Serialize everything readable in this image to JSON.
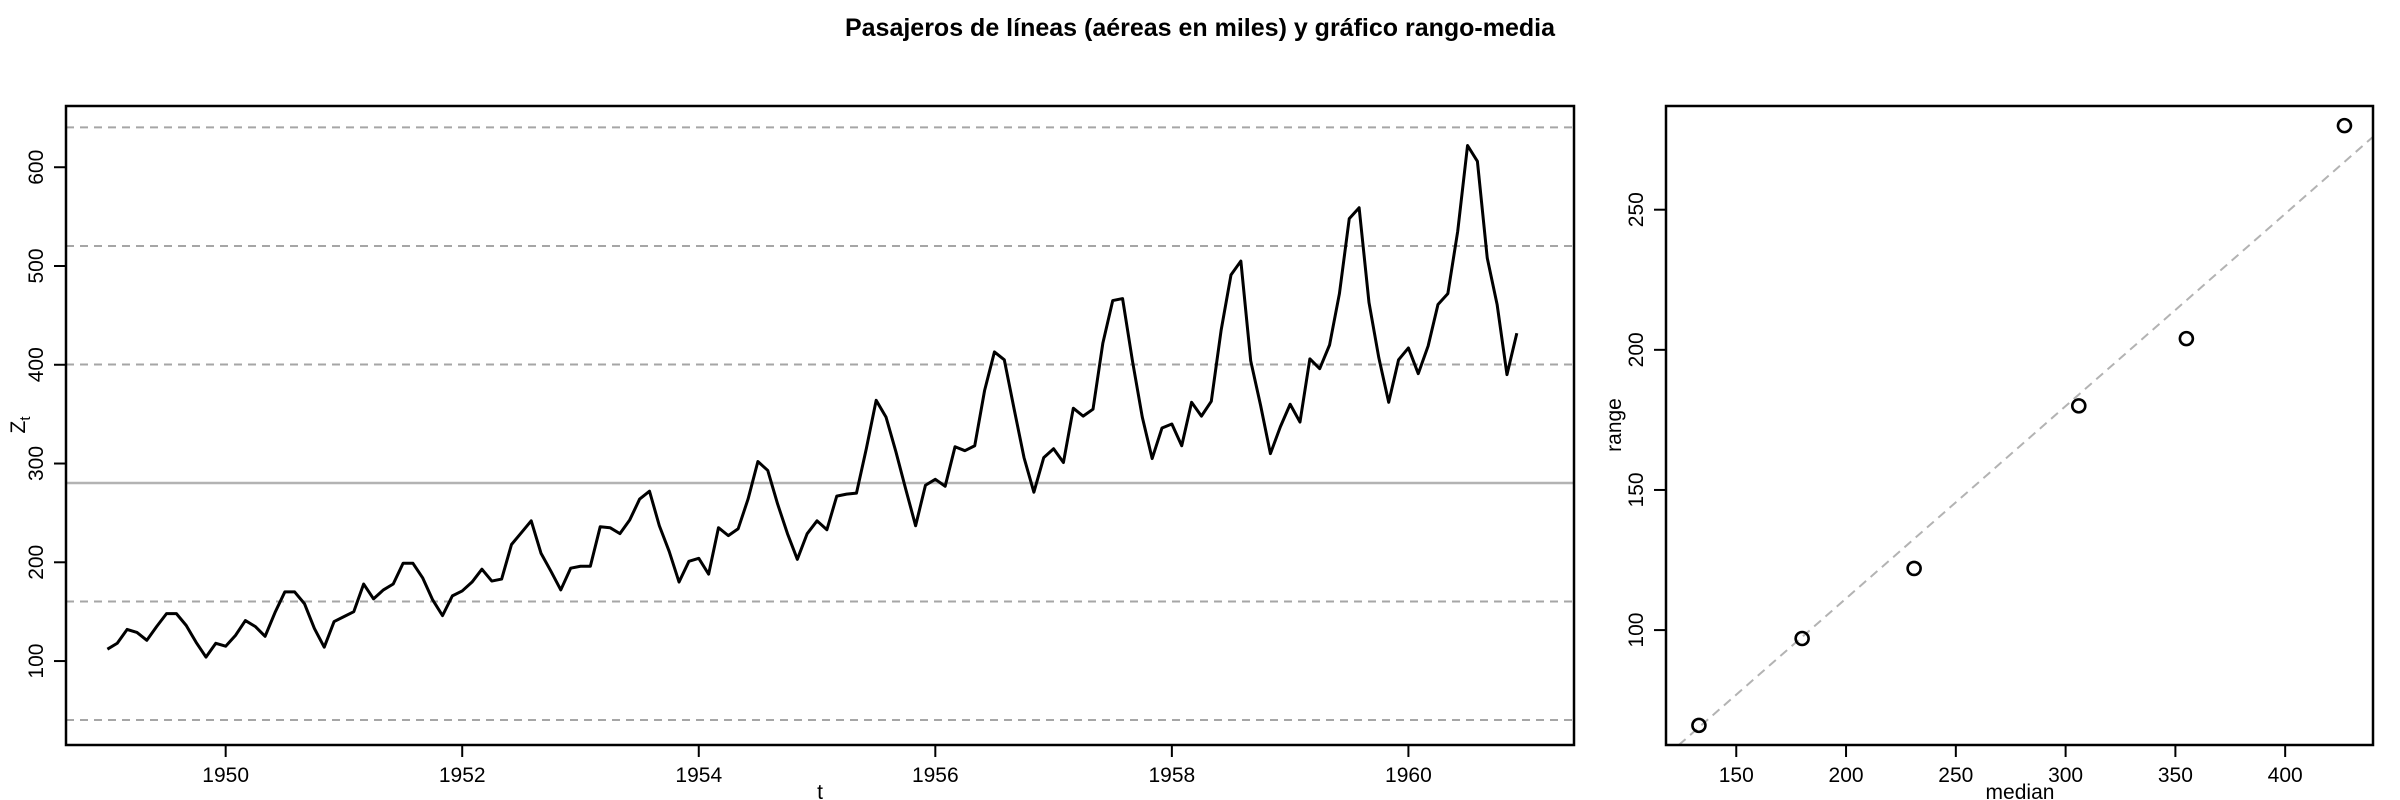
{
  "title": "Pasajeros de líneas (aéreas en miles) y gráfico rango-media",
  "chart_data": [
    {
      "type": "line",
      "xlabel": "t",
      "ylabel": "Z",
      "ylabel_subscript": "t",
      "xlim": [
        1948.65,
        1961.4
      ],
      "ylim": [
        15,
        662
      ],
      "xticks": [
        1950,
        1952,
        1954,
        1956,
        1958,
        1960
      ],
      "yticks": [
        100,
        200,
        300,
        400,
        500,
        600
      ],
      "grid": false,
      "reference_lines": {
        "solid": [
          280.3
        ],
        "dashed": [
          40.3,
          160.3,
          400.3,
          520.3,
          640.3
        ]
      },
      "series": [
        {
          "x_start": 1949.0,
          "x_step": 0.083333,
          "values": [
            112,
            118,
            132,
            129,
            121,
            135,
            148,
            148,
            136,
            119,
            104,
            118,
            115,
            126,
            141,
            135,
            125,
            149,
            170,
            170,
            158,
            133,
            114,
            140,
            145,
            150,
            178,
            163,
            172,
            178,
            199,
            199,
            184,
            162,
            146,
            166,
            171,
            180,
            193,
            181,
            183,
            218,
            230,
            242,
            209,
            191,
            172,
            194,
            196,
            196,
            236,
            235,
            229,
            243,
            264,
            272,
            237,
            211,
            180,
            201,
            204,
            188,
            235,
            227,
            234,
            264,
            302,
            293,
            259,
            229,
            203,
            229,
            242,
            233,
            267,
            269,
            270,
            315,
            364,
            347,
            312,
            274,
            237,
            278,
            284,
            277,
            317,
            313,
            318,
            374,
            413,
            405,
            355,
            306,
            271,
            306,
            315,
            301,
            356,
            348,
            355,
            422,
            465,
            467,
            404,
            347,
            305,
            336,
            340,
            318,
            362,
            348,
            363,
            435,
            491,
            505,
            404,
            359,
            310,
            337,
            360,
            342,
            406,
            396,
            420,
            472,
            548,
            559,
            463,
            407,
            362,
            405,
            417,
            391,
            419,
            461,
            472,
            535,
            622,
            606,
            508,
            461,
            390,
            432
          ]
        }
      ]
    },
    {
      "type": "scatter",
      "xlabel": "median",
      "ylabel": "range",
      "xlim": [
        118,
        440
      ],
      "ylim": [
        59,
        287
      ],
      "xticks": [
        150,
        200,
        250,
        300,
        350,
        400
      ],
      "yticks": [
        100,
        150,
        200,
        250
      ],
      "grid": false,
      "points": [
        {
          "x": 133,
          "y": 66
        },
        {
          "x": 180,
          "y": 97
        },
        {
          "x": 231,
          "y": 122
        },
        {
          "x": 306,
          "y": 180
        },
        {
          "x": 355,
          "y": 204
        },
        {
          "x": 427,
          "y": 280
        }
      ],
      "fit_line": {
        "style": "dashed",
        "from": [
          118,
          55
        ],
        "to": [
          440,
          276
        ]
      }
    }
  ]
}
